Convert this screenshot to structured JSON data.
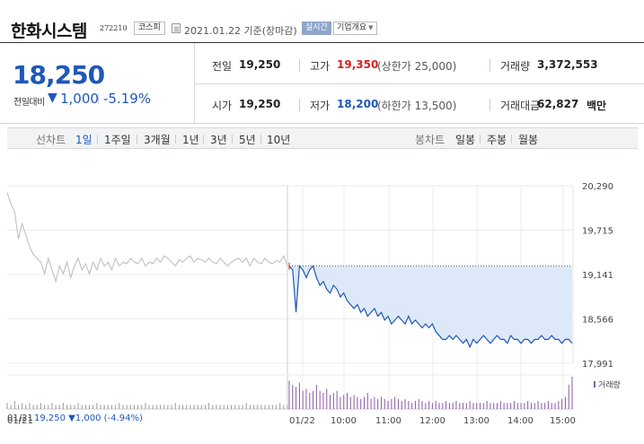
{
  "header": {
    "stock_name": "한화시스템",
    "stock_code": "272210",
    "market": "코스피",
    "base_date": "2021.01.22  기준(장마감)",
    "live_label": "실시간",
    "company_dropdown": "기업개요"
  },
  "summary": {
    "current_price": "18,250",
    "change_label": "전일대비",
    "change_arrow": "▼",
    "change_value": "1,000",
    "change_pct": "-5.19%",
    "prev_close_label": "전일",
    "prev_close": "19,250",
    "high_label": "고가",
    "high": "19,350",
    "upper_limit": "(상한가 25,000)",
    "volume_label": "거래량",
    "volume": "3,372,553",
    "open_label": "시가",
    "open": "19,250",
    "low_label": "저가",
    "low": "18,200",
    "lower_limit": "(하한가 13,500)",
    "turnover_label": "거래대금",
    "turnover": "62,827",
    "turnover_unit": "백만"
  },
  "tabs": {
    "line_label": "선차트",
    "line_periods": [
      "1일",
      "1주일",
      "3개월",
      "1년",
      "3년",
      "5년",
      "10년"
    ],
    "candle_label": "봉차트",
    "candle_periods": [
      "일봉",
      "주봉",
      "월봉"
    ]
  },
  "colors": {
    "up": "#d62020",
    "down": "#1f58b8",
    "prev_line": "#bbbbbb",
    "fill": "#dde9f8"
  },
  "chart_data": {
    "type": "line",
    "ylim": [
      17991,
      20290
    ],
    "y_ticks": [
      "20,290",
      "19,715",
      "19,141",
      "18,566",
      "17,991"
    ],
    "y_tick_values": [
      20290,
      19715,
      19141,
      18566,
      17991
    ],
    "x_ticks": [
      "01/21",
      "01/22",
      "10:00",
      "11:00",
      "12:00",
      "13:00",
      "14:00",
      "15:00"
    ],
    "prev_close": 19250,
    "legend": "거래량",
    "prev_day_footer": "01/21  19,250 ▼1,000 (-4.94%)",
    "series": [
      {
        "day": "01/21",
        "values": [
          20200,
          20050,
          19950,
          19600,
          19800,
          19650,
          19500,
          19400,
          19350,
          19300,
          19150,
          19350,
          19200,
          19050,
          19250,
          19150,
          19300,
          19100,
          19250,
          19350,
          19200,
          19280,
          19150,
          19300,
          19200,
          19350,
          19250,
          19300,
          19200,
          19350,
          19250,
          19300,
          19280,
          19350,
          19300,
          19280,
          19350,
          19250,
          19300,
          19280,
          19350,
          19300,
          19380,
          19350,
          19300,
          19250,
          19330,
          19300,
          19350,
          19380,
          19300,
          19350,
          19330,
          19300,
          19350,
          19300,
          19280,
          19350,
          19300,
          19250,
          19300,
          19330,
          19350,
          19300,
          19350,
          19250,
          19350,
          19300,
          19280,
          19350,
          19300,
          19280,
          19320,
          19300,
          19380,
          19250
        ]
      },
      {
        "day": "01/22",
        "values": [
          19250,
          19200,
          18650,
          19250,
          19200,
          19100,
          19200,
          19250,
          19100,
          19000,
          19050,
          18950,
          18900,
          19000,
          18950,
          18850,
          18900,
          18800,
          18750,
          18700,
          18750,
          18650,
          18700,
          18600,
          18650,
          18700,
          18600,
          18650,
          18550,
          18600,
          18500,
          18550,
          18600,
          18550,
          18500,
          18600,
          18500,
          18550,
          18500,
          18450,
          18500,
          18450,
          18500,
          18400,
          18350,
          18300,
          18300,
          18350,
          18300,
          18350,
          18300,
          18250,
          18300,
          18200,
          18300,
          18250,
          18300,
          18350,
          18300,
          18250,
          18300,
          18350,
          18300,
          18300,
          18250,
          18350,
          18300,
          18300,
          18250,
          18300,
          18300,
          18250,
          18300,
          18300,
          18350,
          18300,
          18300,
          18350,
          18300,
          18300,
          18250,
          18300,
          18300,
          18250
        ]
      }
    ],
    "volume": [
      3,
      2,
      4,
      2,
      3,
      2,
      3,
      2,
      2,
      3,
      2,
      2,
      3,
      2,
      2,
      3,
      2,
      2,
      2,
      3,
      2,
      2,
      2,
      2,
      3,
      2,
      2,
      2,
      2,
      2,
      3,
      2,
      2,
      2,
      2,
      2,
      2,
      3,
      2,
      2,
      2,
      2,
      2,
      2,
      2,
      3,
      2,
      2,
      2,
      2,
      2,
      2,
      2,
      2,
      3,
      2,
      2,
      2,
      2,
      2,
      2,
      2,
      2,
      2,
      3,
      2,
      2,
      2,
      2,
      2,
      2,
      2,
      2,
      3,
      2,
      2,
      14,
      12,
      11,
      13,
      9,
      10,
      8,
      9,
      12,
      9,
      8,
      10,
      7,
      8,
      9,
      6,
      7,
      8,
      6,
      7,
      6,
      5,
      6,
      8,
      5,
      6,
      5,
      6,
      5,
      4,
      5,
      6,
      5,
      4,
      5,
      4,
      3,
      4,
      5,
      4,
      3,
      4,
      3,
      4,
      3,
      3,
      4,
      3,
      3,
      4,
      3,
      3,
      3,
      4,
      3,
      3,
      3,
      3,
      4,
      3,
      3,
      3,
      4,
      3,
      3,
      3,
      4,
      3,
      3,
      3,
      4,
      3,
      3,
      4,
      3,
      3,
      4,
      3,
      3,
      4,
      5,
      6,
      12,
      16
    ]
  }
}
